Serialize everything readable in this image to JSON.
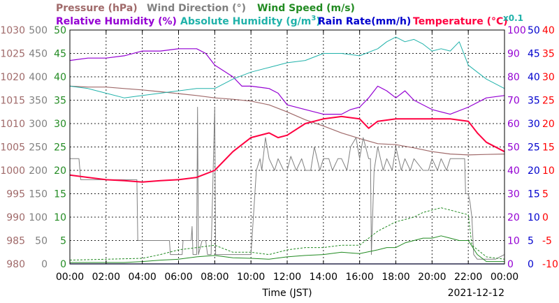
{
  "chart_data": {
    "type": "line",
    "date_label": "2021-12-12",
    "xlabel": "Time (JST)",
    "x_ticks": [
      "00:00",
      "02:00",
      "04:00",
      "06:00",
      "08:00",
      "10:00",
      "12:00",
      "14:00",
      "16:00",
      "18:00",
      "20:00",
      "22:00",
      "00:00"
    ],
    "x_range_hours": [
      0,
      24
    ],
    "grid": true,
    "legend": [
      {
        "name": "Pressure (hPa)",
        "color": "#a06a6a"
      },
      {
        "name": "Wind Direction (°)",
        "color": "#808080"
      },
      {
        "name": "Wind Speed (m/s)",
        "color": "#228b22"
      },
      {
        "name": "Relative Humidity (%)",
        "color": "#9400d3"
      },
      {
        "name": "Absolute Humidity (g/m",
        "sup": "3",
        "suffix": ")",
        "color": "#20b2aa"
      },
      {
        "name": "Rain Rate(mm/h)",
        "color": "#0000cd"
      },
      {
        "name": "Temperature (°C)",
        "color": "#ff0040"
      },
      {
        "name": "x0.1",
        "color": "#20b2aa"
      }
    ],
    "axes": [
      {
        "id": "pressure",
        "side": "left",
        "color": "#a06a6a",
        "range": [
          980,
          1030
        ],
        "ticks": [
          "980",
          "985",
          "990",
          "995",
          "1000",
          "1005",
          "1010",
          "1015",
          "1020",
          "1025",
          "1030"
        ]
      },
      {
        "id": "wind_direction",
        "side": "left",
        "color": "#808080",
        "range": [
          0,
          500
        ],
        "ticks": [
          "0",
          "50",
          "100",
          "150",
          "200",
          "250",
          "300",
          "350",
          "400",
          "450",
          "500"
        ]
      },
      {
        "id": "wind_speed",
        "side": "left",
        "color": "#228b22",
        "range": [
          0,
          50
        ],
        "ticks": [
          "0",
          "5",
          "10",
          "15",
          "20",
          "25",
          "30",
          "35",
          "40",
          "45",
          "50"
        ]
      },
      {
        "id": "humidity",
        "side": "right",
        "color": "#9400d3",
        "range": [
          0,
          100
        ],
        "ticks": [
          "0",
          "10",
          "20",
          "30",
          "40",
          "50",
          "60",
          "70",
          "80",
          "90",
          "100"
        ]
      },
      {
        "id": "rain_rate",
        "side": "right",
        "color": "#0000cd",
        "range": [
          0,
          50
        ],
        "ticks": [
          "0",
          "5",
          "10",
          "15",
          "20",
          "25",
          "30",
          "35",
          "40",
          "45",
          "50"
        ]
      },
      {
        "id": "temperature",
        "side": "right",
        "color": "#ff0000",
        "range": [
          -10,
          40
        ],
        "ticks": [
          "-10",
          "-5",
          "0",
          "5",
          "10",
          "15",
          "20",
          "25",
          "30",
          "35",
          "40"
        ]
      }
    ],
    "series": [
      {
        "name": "Pressure (hPa)",
        "axis": "pressure",
        "color": "#a06a6a",
        "width": 1.2,
        "x": [
          0,
          1,
          2,
          3,
          4,
          5,
          6,
          7,
          8,
          9,
          10,
          11,
          12,
          13,
          14,
          15,
          16,
          17,
          18,
          19,
          20,
          21,
          22,
          23,
          24
        ],
        "y": [
          1018,
          1017.8,
          1017.8,
          1017.5,
          1017.2,
          1016.8,
          1016.4,
          1016,
          1015.5,
          1015.2,
          1014.8,
          1014,
          1012.5,
          1010.8,
          1009.5,
          1008,
          1006.8,
          1005.7,
          1005.5,
          1004.8,
          1004,
          1003.5,
          1003.3,
          1003.4,
          1003.5
        ]
      },
      {
        "name": "Wind Direction (°)",
        "axis": "wind_direction",
        "color": "#808080",
        "width": 1,
        "x": [
          0,
          0.5,
          0.6,
          1.5,
          2,
          3,
          3.7,
          3.75,
          5,
          5.5,
          5.55,
          6.2,
          6.25,
          6.7,
          6.75,
          6.8,
          6.9,
          7,
          7.05,
          7.1,
          7.3,
          7.5,
          7.6,
          7.8,
          8,
          8.05,
          8.3,
          9,
          9.5,
          9.8,
          10,
          10.3,
          10.5,
          10.6,
          10.8,
          11,
          11.3,
          11.5,
          11.8,
          12,
          12.2,
          12.5,
          12.8,
          13,
          13.3,
          13.5,
          13.8,
          14,
          14.3,
          14.5,
          14.8,
          15,
          15.3,
          15.5,
          15.8,
          16,
          16.2,
          16.5,
          16.6,
          16.65,
          16.8,
          17,
          17.3,
          17.5,
          17.8,
          18,
          18.3,
          18.5,
          18.8,
          19,
          19.5,
          19.8,
          20,
          20.3,
          20.5,
          20.8,
          21,
          21.3,
          21.5,
          21.8,
          21.85,
          22,
          22.1,
          22.2,
          22.3,
          22.5,
          23,
          23.5,
          24
        ],
        "y": [
          225,
          225,
          180,
          180,
          180,
          180,
          180,
          50,
          50,
          50,
          20,
          20,
          50,
          50,
          80,
          20,
          20,
          20,
          335,
          20,
          50,
          50,
          20,
          20,
          335,
          20,
          20,
          20,
          20,
          20,
          20,
          200,
          225,
          200,
          270,
          225,
          200,
          225,
          200,
          200,
          230,
          200,
          225,
          200,
          200,
          250,
          200,
          225,
          225,
          200,
          225,
          225,
          200,
          250,
          270,
          225,
          270,
          225,
          225,
          20,
          200,
          250,
          200,
          225,
          200,
          250,
          200,
          225,
          200,
          225,
          200,
          200,
          225,
          200,
          225,
          200,
          225,
          225,
          225,
          225,
          150,
          150,
          130,
          100,
          20,
          10,
          10,
          10,
          20
        ]
      },
      {
        "name": "Wind Speed (m/s) mean",
        "axis": "wind_speed",
        "color": "#228b22",
        "width": 1,
        "x": [
          0,
          1,
          2,
          3,
          4,
          5,
          6,
          7,
          8,
          9,
          10,
          11,
          12,
          13,
          14,
          15,
          16,
          17,
          17.5,
          18,
          18.5,
          19,
          19.5,
          20,
          20.5,
          21,
          21.5,
          22,
          22.5,
          23,
          24
        ],
        "y": [
          0.3,
          0.3,
          0.3,
          0.3,
          0.5,
          0.8,
          1,
          1.5,
          1.8,
          1.3,
          1.2,
          1,
          1.5,
          1.8,
          2,
          2.5,
          2.2,
          3,
          3.5,
          3.5,
          4.5,
          5,
          5.5,
          5.5,
          6,
          5.5,
          5,
          5,
          2,
          0.5,
          0.5
        ]
      },
      {
        "name": "Wind Speed (m/s) gust",
        "axis": "wind_speed",
        "color": "#228b22",
        "width": 1,
        "dashed": true,
        "x": [
          0,
          2,
          4,
          5,
          6,
          7,
          8,
          9,
          10,
          11,
          12,
          13,
          14,
          15,
          16,
          17,
          17.5,
          18,
          18.5,
          19,
          19.5,
          20,
          20.5,
          21,
          21.5,
          22,
          22.2,
          23,
          24
        ],
        "y": [
          0.8,
          1,
          1.2,
          2,
          3,
          3.5,
          4,
          2.5,
          2.5,
          2,
          3,
          3.5,
          3.5,
          4,
          4,
          7,
          8,
          9,
          9.5,
          10,
          11,
          11.5,
          12,
          11.5,
          11,
          10.5,
          4,
          1.5,
          1
        ]
      },
      {
        "name": "Relative Humidity (%)",
        "axis": "humidity",
        "color": "#9400d3",
        "width": 1.2,
        "x": [
          0,
          1,
          2,
          3,
          4,
          5,
          6,
          7,
          7.5,
          8,
          9,
          9.5,
          10,
          11,
          11.5,
          12,
          13,
          14,
          15,
          15.5,
          16,
          16.5,
          17,
          17.5,
          18,
          18.5,
          19,
          20,
          21,
          22,
          23,
          24
        ],
        "y": [
          87,
          88,
          88,
          89,
          91,
          91,
          92,
          92,
          90,
          85,
          80,
          76,
          76,
          75,
          73,
          68,
          66,
          64,
          64,
          66,
          67,
          71,
          76,
          74,
          71,
          74,
          70,
          66,
          64,
          67,
          71,
          72
        ]
      },
      {
        "name": "Absolute Humidity (g/m3)",
        "axis": "humidity",
        "color": "#20b2aa",
        "width": 1,
        "x": [
          0,
          1,
          2,
          3,
          4,
          5,
          6,
          7,
          8,
          9,
          10,
          11,
          12,
          13,
          14,
          15,
          16,
          17,
          17.5,
          18,
          18.5,
          19,
          19.5,
          20,
          20.5,
          21,
          21.5,
          22,
          22.5,
          23,
          24
        ],
        "y": [
          76,
          75,
          73,
          71,
          72,
          73,
          74,
          75,
          75,
          79,
          82,
          84,
          86,
          87,
          90,
          90,
          89,
          92,
          95,
          97,
          95,
          96,
          94,
          91,
          92,
          91,
          95,
          85,
          82,
          79,
          75
        ]
      },
      {
        "name": "Temperature (°C)",
        "axis": "temperature",
        "color": "#ff0040",
        "width": 2,
        "x": [
          0,
          1,
          2,
          3,
          4,
          5,
          6,
          7,
          8,
          9,
          10,
          11,
          11.5,
          12,
          13,
          14,
          15,
          16,
          16.5,
          17,
          18,
          19,
          20,
          21,
          22,
          22.5,
          23,
          24
        ],
        "y": [
          9,
          8.5,
          8,
          7.8,
          7.5,
          7.8,
          8,
          8.5,
          10,
          14,
          17,
          18,
          17,
          17.5,
          20,
          21,
          21.5,
          21,
          19,
          20.5,
          21,
          21,
          21,
          21,
          20.5,
          18,
          16,
          14
        ]
      },
      {
        "name": "Rain Rate(mm/h)",
        "axis": "rain_rate",
        "color": "#0000cd",
        "width": 1.2,
        "x": [
          0,
          24
        ],
        "y": [
          0,
          0
        ]
      }
    ]
  }
}
